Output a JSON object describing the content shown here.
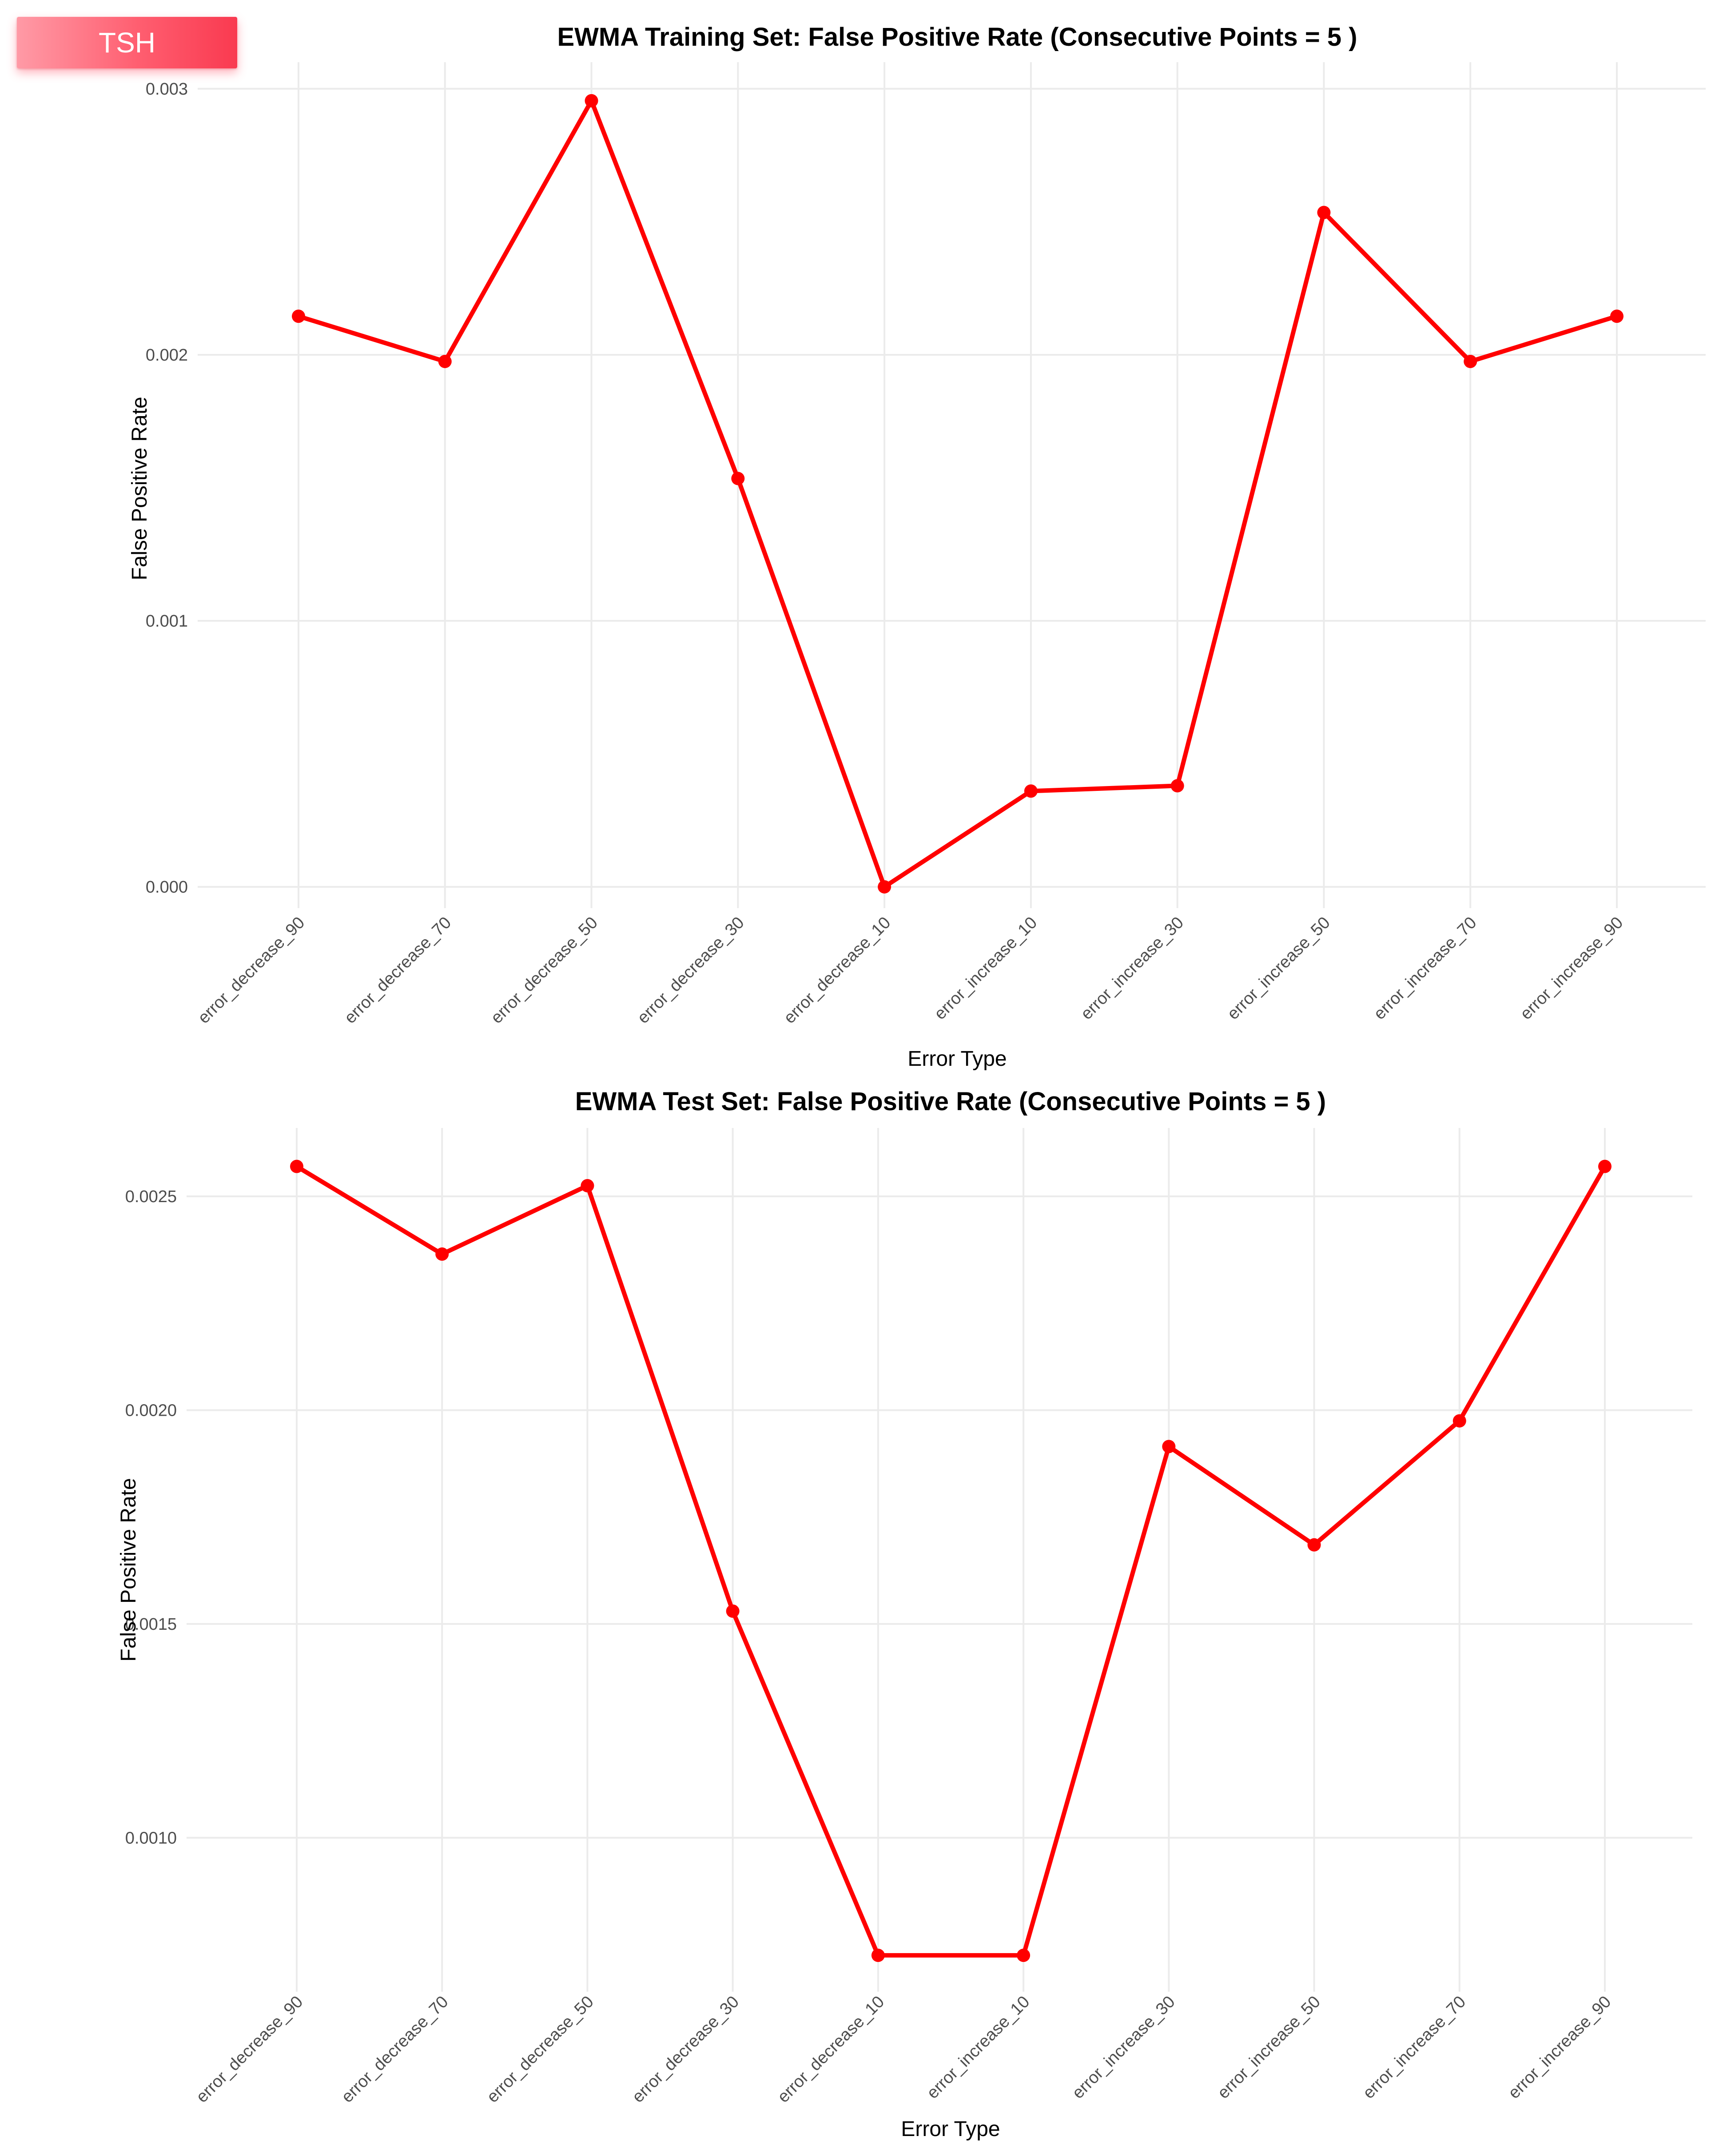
{
  "badge": {
    "label": "TSH"
  },
  "chart_data": [
    {
      "type": "line",
      "title": "EWMA Training Set: False Positive Rate (Consecutive Points = 5 )",
      "xlabel": "Error Type",
      "ylabel": "False Positive Rate",
      "categories": [
        "error_decrease_90",
        "error_decrease_70",
        "error_decrease_50",
        "error_decrease_30",
        "error_decrease_10",
        "error_increase_10",
        "error_increase_30",
        "error_increase_50",
        "error_increase_70",
        "error_increase_90"
      ],
      "values": [
        0.002145,
        0.001975,
        0.002955,
        0.001535,
        0.0,
        0.00036,
        0.00038,
        0.002535,
        0.001975,
        0.002145
      ],
      "yticks": [
        0.0,
        0.001,
        0.002,
        0.003
      ],
      "ytick_labels": [
        "0.000",
        "0.001",
        "0.002",
        "0.003"
      ],
      "ylim": [
        -8e-05,
        0.0031
      ],
      "grid": true,
      "color": "#ff0000"
    },
    {
      "type": "line",
      "title": "EWMA Test Set: False Positive Rate (Consecutive Points = 5 )",
      "xlabel": "Error Type",
      "ylabel": "False Positive Rate",
      "categories": [
        "error_decrease_90",
        "error_decrease_70",
        "error_decrease_50",
        "error_decrease_30",
        "error_decrease_10",
        "error_increase_10",
        "error_increase_30",
        "error_increase_50",
        "error_increase_70",
        "error_increase_90"
      ],
      "values": [
        0.00257,
        0.002365,
        0.002525,
        0.00153,
        0.000725,
        0.000725,
        0.001915,
        0.001685,
        0.001975,
        0.00257
      ],
      "yticks": [
        0.001,
        0.0015,
        0.002,
        0.0025
      ],
      "ytick_labels": [
        "0.0010",
        "0.0015",
        "0.0020",
        "0.0025"
      ],
      "ylim": [
        0.00064,
        0.00266
      ],
      "grid": true,
      "color": "#ff0000"
    }
  ]
}
